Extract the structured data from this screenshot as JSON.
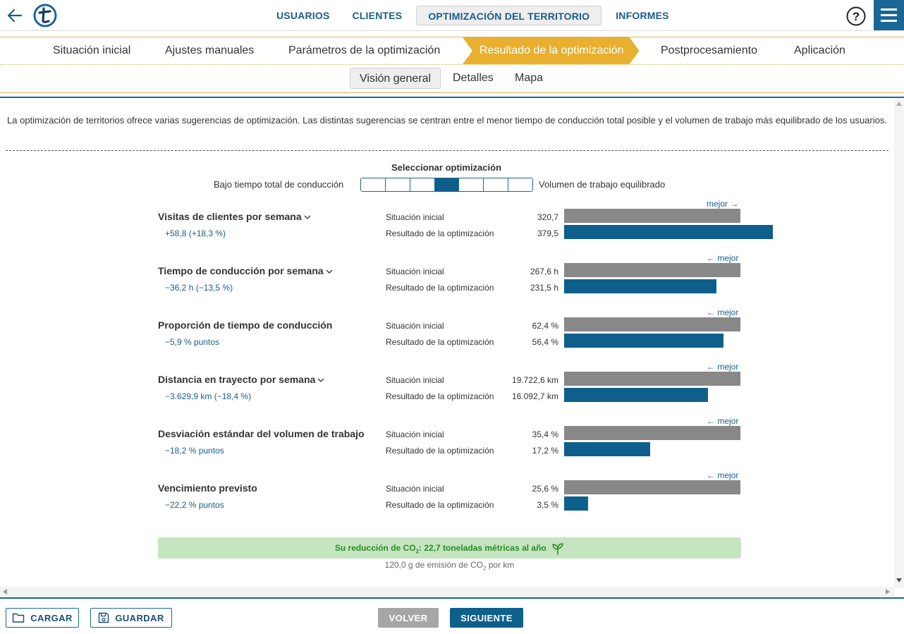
{
  "nav": {
    "items": [
      {
        "label": "USUARIOS",
        "active": false
      },
      {
        "label": "CLIENTES",
        "active": false
      },
      {
        "label": "OPTIMIZACIÓN DEL TERRITORIO",
        "active": true
      },
      {
        "label": "INFORMES",
        "active": false
      }
    ]
  },
  "steps": [
    {
      "label": "Situación inicial"
    },
    {
      "label": "Ajustes manuales"
    },
    {
      "label": "Parámetros de la optimización"
    },
    {
      "label": "Resultado de la optimización",
      "active": true
    },
    {
      "label": "Postprocesamiento"
    },
    {
      "label": "Aplicación"
    }
  ],
  "subtabs": [
    {
      "label": "Visión general",
      "active": true
    },
    {
      "label": "Detalles"
    },
    {
      "label": "Mapa"
    }
  ],
  "intro": "La optimización de territorios ofrece varias sugerencias de optimización. Las distintas sugerencias se centran entre el menor tiempo de conducción total posible y el volumen de trabajo más equilibrado de los usuarios.",
  "selector": {
    "title": "Seleccionar optimización",
    "left_label": "Bajo tiempo total de conducción",
    "right_label": "Volumen de trabajo equilibrado",
    "segments": 7,
    "selected_index": 3
  },
  "metrics": [
    {
      "name": "Visitas de clientes por semana",
      "has_dropdown": true,
      "diff": "+58,8 (+18,3 %)",
      "label_initial": "Situación inicial",
      "label_result": "Resultado de la optimización",
      "value_initial": "320,7",
      "value_result": "379,5",
      "better": "mejor →",
      "better_direction": "higher",
      "ratio_initial": 1.0,
      "ratio_result": 1.183
    },
    {
      "name": "Tiempo de conducción por semana",
      "has_dropdown": true,
      "diff": "−36,2 h (−13,5 %)",
      "label_initial": "Situación inicial",
      "label_result": "Resultado de la optimización",
      "value_initial": "267,6 h",
      "value_result": "231,5 h",
      "better": "← mejor",
      "better_direction": "lower",
      "ratio_initial": 1.0,
      "ratio_result": 0.865
    },
    {
      "name": "Proporción de tiempo de conducción",
      "has_dropdown": false,
      "diff": "−5,9 % puntos",
      "label_initial": "Situación inicial",
      "label_result": "Resultado de la optimización",
      "value_initial": "62,4 %",
      "value_result": "56,4 %",
      "better": "← mejor",
      "better_direction": "lower",
      "ratio_initial": 1.0,
      "ratio_result": 0.904
    },
    {
      "name": "Distancia en trayecto por semana",
      "has_dropdown": true,
      "diff": "−3.629,9 km (−18,4 %)",
      "label_initial": "Situación inicial",
      "label_result": "Resultado de la optimización",
      "value_initial": "19.722,6 km",
      "value_result": "16.092,7 km",
      "better": "← mejor",
      "better_direction": "lower",
      "ratio_initial": 1.0,
      "ratio_result": 0.816
    },
    {
      "name": "Desviación estándar del volumen de trabajo",
      "has_dropdown": false,
      "diff": "−18,2 % puntos",
      "label_initial": "Situación inicial",
      "label_result": "Resultado de la optimización",
      "value_initial": "35,4 %",
      "value_result": "17,2 %",
      "better": "← mejor",
      "better_direction": "lower",
      "ratio_initial": 1.0,
      "ratio_result": 0.486
    },
    {
      "name": "Vencimiento previsto",
      "has_dropdown": false,
      "diff": "−22,2 % puntos",
      "label_initial": "Situación inicial",
      "label_result": "Resultado de la optimización",
      "value_initial": "25,6 %",
      "value_result": "3,5 %",
      "better": "← mejor",
      "better_direction": "lower",
      "ratio_initial": 1.0,
      "ratio_result": 0.137
    }
  ],
  "co2": {
    "prefix": "Su reducción de CO",
    "sub": "2",
    "suffix": ": 22,7 toneladas métricas al año",
    "note_prefix": "120,0 g de emisión de CO",
    "note_sub": "2",
    "note_suffix": " por km"
  },
  "buttons": {
    "load": "CARGAR",
    "save": "GUARDAR",
    "back": "VOLVER",
    "next": "SIGUIENTE"
  },
  "colors": {
    "accent": "#1a6796",
    "step_active": "#e8b02e",
    "bar_initial": "#888888",
    "bar_result": "#0e5f8c",
    "co2_bg": "#c4e5c0",
    "co2_text": "#2d8a2a"
  },
  "icons": {
    "back": "back-arrow-icon",
    "logo": "t-logo-icon",
    "help": "help-icon",
    "menu": "hamburger-menu-icon",
    "chevron": "chevron-down-icon",
    "leaf": "leaf-icon",
    "folder": "folder-icon",
    "save": "floppy-disk-icon"
  }
}
